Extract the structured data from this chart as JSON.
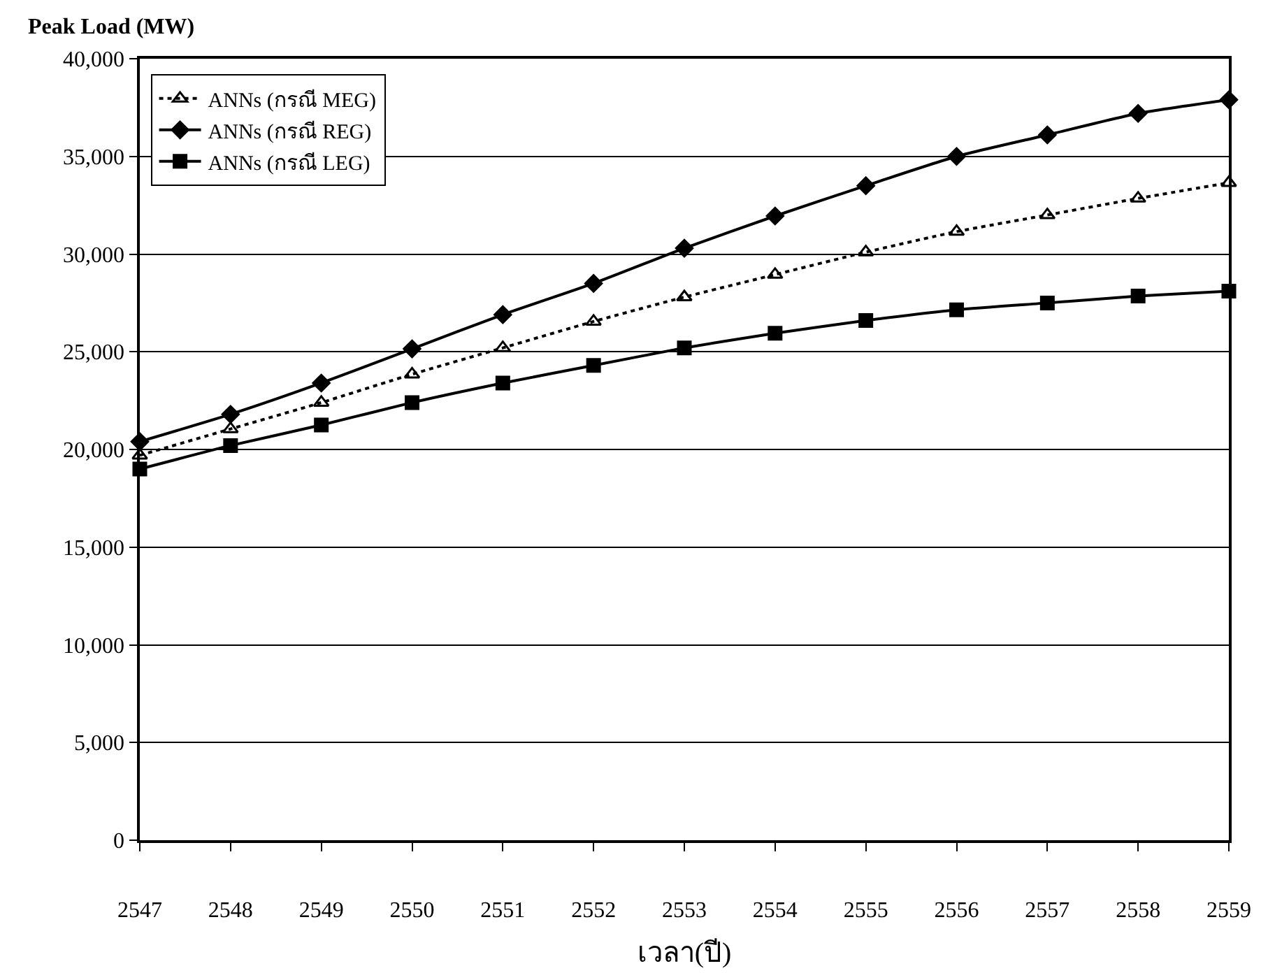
{
  "chart_data": {
    "type": "line",
    "ylabel": "Peak Load (MW)",
    "xlabel": "เวลา(ปี)",
    "x": [
      2547,
      2548,
      2549,
      2550,
      2551,
      2552,
      2553,
      2554,
      2555,
      2556,
      2557,
      2558,
      2559
    ],
    "xlim": [
      2547,
      2559
    ],
    "xticks": [
      2547,
      2548,
      2549,
      2550,
      2551,
      2552,
      2553,
      2554,
      2555,
      2556,
      2557,
      2558,
      2559
    ],
    "ylim": [
      0,
      40000
    ],
    "yticks": [
      {
        "value": 0,
        "label": "0"
      },
      {
        "value": 5000,
        "label": "5,000"
      },
      {
        "value": 10000,
        "label": "10,000"
      },
      {
        "value": 15000,
        "label": "15,000"
      },
      {
        "value": 20000,
        "label": "20,000"
      },
      {
        "value": 25000,
        "label": "25,000"
      },
      {
        "value": 30000,
        "label": "30,000"
      },
      {
        "value": 35000,
        "label": "35,000"
      },
      {
        "value": 40000,
        "label": "40,000"
      }
    ],
    "grid": "y",
    "legend": "top left",
    "series": [
      {
        "name": "ANNs (กรณี MEG)",
        "color": "#000000",
        "marker": "triangle-open",
        "line_style": "dotted",
        "values": [
          19700,
          21050,
          22400,
          23850,
          25200,
          26550,
          27800,
          28950,
          30100,
          31150,
          32000,
          32850,
          33650
        ]
      },
      {
        "name": "ANNs (กรณี REG)",
        "color": "#000000",
        "marker": "diamond",
        "line_style": "solid",
        "values": [
          20400,
          21800,
          23400,
          25150,
          26900,
          28500,
          30300,
          31950,
          33500,
          35000,
          36100,
          37200,
          37900
        ]
      },
      {
        "name": "ANNs (กรณี LEG)",
        "color": "#000000",
        "marker": "square",
        "line_style": "solid",
        "values": [
          19000,
          20200,
          21250,
          22400,
          23400,
          24300,
          25200,
          25950,
          26600,
          27150,
          27500,
          27850,
          28100
        ]
      }
    ]
  }
}
